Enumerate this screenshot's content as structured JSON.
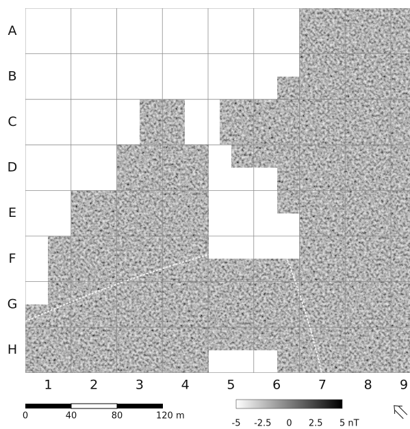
{
  "map": {
    "rows": [
      "A",
      "B",
      "C",
      "D",
      "E",
      "F",
      "G",
      "H"
    ],
    "columns": [
      "1",
      "2",
      "3",
      "4",
      "5",
      "6",
      "7",
      "8",
      "9"
    ],
    "scale_bar": {
      "labels": [
        "0",
        "40",
        "80",
        "120 m"
      ]
    },
    "color_bar": {
      "labels": [
        "-5",
        "-2.5",
        "0",
        "2.5",
        "5 nT"
      ]
    }
  }
}
